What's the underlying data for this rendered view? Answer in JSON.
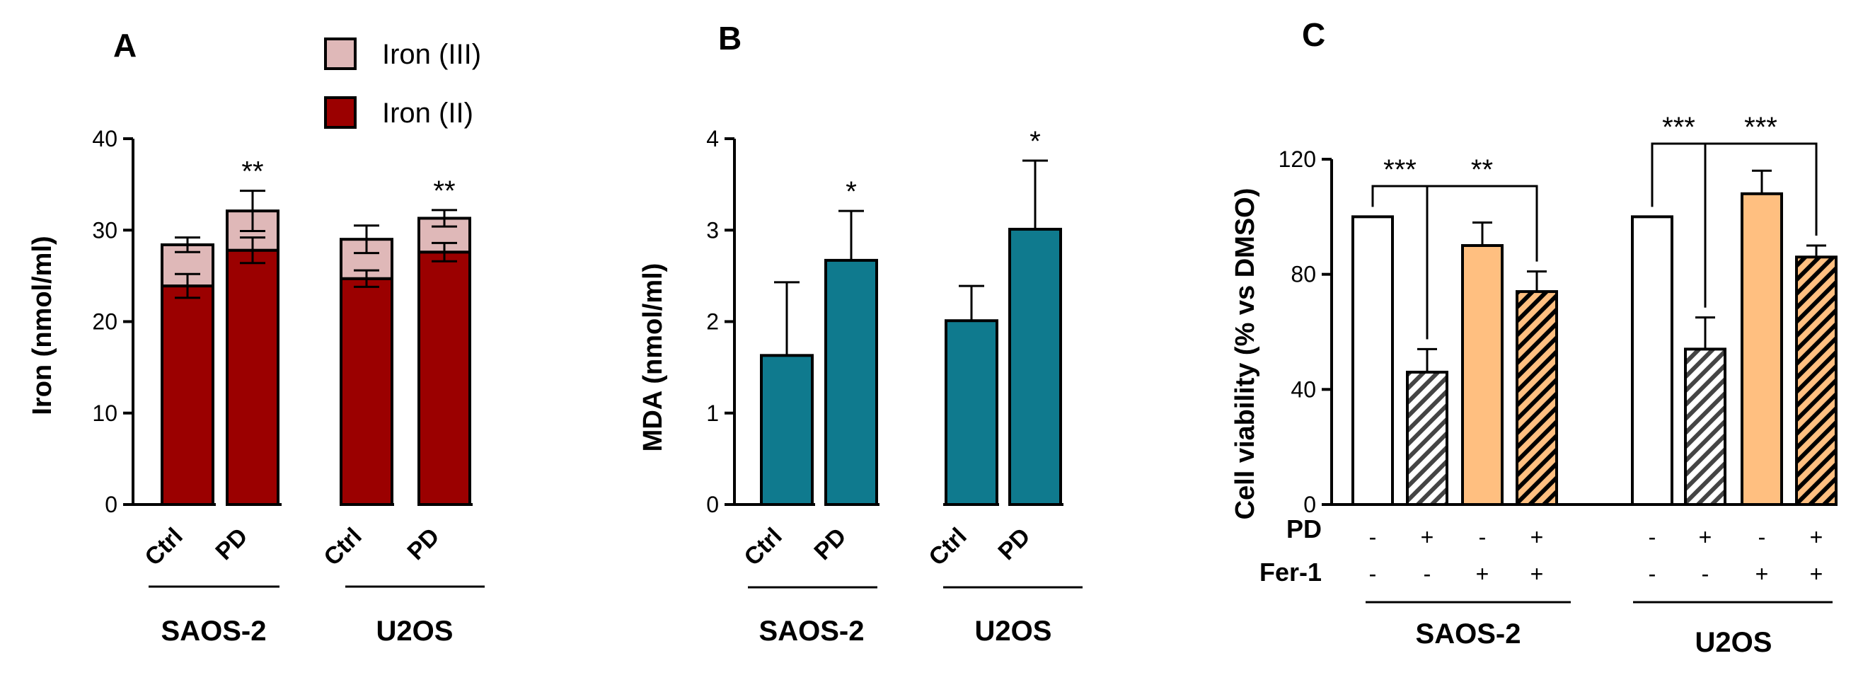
{
  "colors": {
    "iron2": "#9b0000",
    "iron3": "#dfb8b8",
    "mda": "#0f7a8e",
    "white": "#ffffff",
    "grey_hatch": "#444444",
    "orange": "#ffbf80",
    "axis": "#000000"
  },
  "chart_data": [
    {
      "panel": "A",
      "type": "bar",
      "stacked": true,
      "ylabel": "Iron (nmol/ml)",
      "ylim": [
        0,
        40
      ],
      "yticks": [
        0,
        10,
        20,
        30,
        40
      ],
      "categories": [
        "Ctrl",
        "PD",
        "Ctrl",
        "PD"
      ],
      "groups": [
        {
          "label": "SAOS-2"
        },
        {
          "label": "U2OS"
        }
      ],
      "legend": [
        "Iron (III)",
        "Iron (II)"
      ],
      "series": [
        {
          "name": "Iron (II)",
          "values": [
            23.9,
            27.8,
            24.7,
            27.6
          ],
          "errors": [
            1.3,
            1.4,
            0.9,
            1.0
          ],
          "color": "#9b0000"
        },
        {
          "name": "Iron (III)",
          "values": [
            4.5,
            4.3,
            4.3,
            3.7
          ],
          "errors": [
            0.8,
            2.2,
            1.5,
            0.9
          ],
          "color": "#dfb8b8"
        }
      ],
      "significance": [
        "",
        "**",
        "",
        "**"
      ]
    },
    {
      "panel": "B",
      "type": "bar",
      "ylabel": "MDA (nmol/ml)",
      "ylim": [
        0,
        4
      ],
      "yticks": [
        0,
        1,
        2,
        3,
        4
      ],
      "categories": [
        "Ctrl",
        "PD",
        "Ctrl",
        "PD"
      ],
      "groups": [
        {
          "label": "SAOS-2"
        },
        {
          "label": "U2OS"
        }
      ],
      "values": [
        1.63,
        2.67,
        2.01,
        3.01
      ],
      "errors": [
        0.8,
        0.54,
        0.38,
        0.75
      ],
      "color": "#0f7a8e",
      "significance": [
        "",
        "*",
        "",
        "*"
      ]
    },
    {
      "panel": "C",
      "type": "bar",
      "ylabel": "Cell viability (% vs DMSO)",
      "ylim": [
        0,
        120
      ],
      "yticks": [
        0,
        40,
        80,
        120
      ],
      "row_labels": [
        "PD",
        "Fer-1"
      ],
      "pd": [
        "-",
        "+",
        "-",
        "+",
        "-",
        "+",
        "-",
        "+"
      ],
      "fer1": [
        "-",
        "-",
        "+",
        "+",
        "-",
        "-",
        "+",
        "+"
      ],
      "groups": [
        {
          "label": "SAOS-2"
        },
        {
          "label": "U2OS"
        }
      ],
      "values": [
        100,
        46,
        90,
        74,
        100,
        54,
        108,
        86
      ],
      "errors": [
        0,
        8,
        8,
        7,
        0,
        11,
        8,
        4
      ],
      "significance": [
        {
          "label": "***",
          "from": 0,
          "to": 1
        },
        {
          "label": "**",
          "from": 1,
          "to": 3
        },
        {
          "label": "***",
          "from": 4,
          "to": 5
        },
        {
          "label": "***",
          "from": 5,
          "to": 7
        }
      ]
    }
  ]
}
